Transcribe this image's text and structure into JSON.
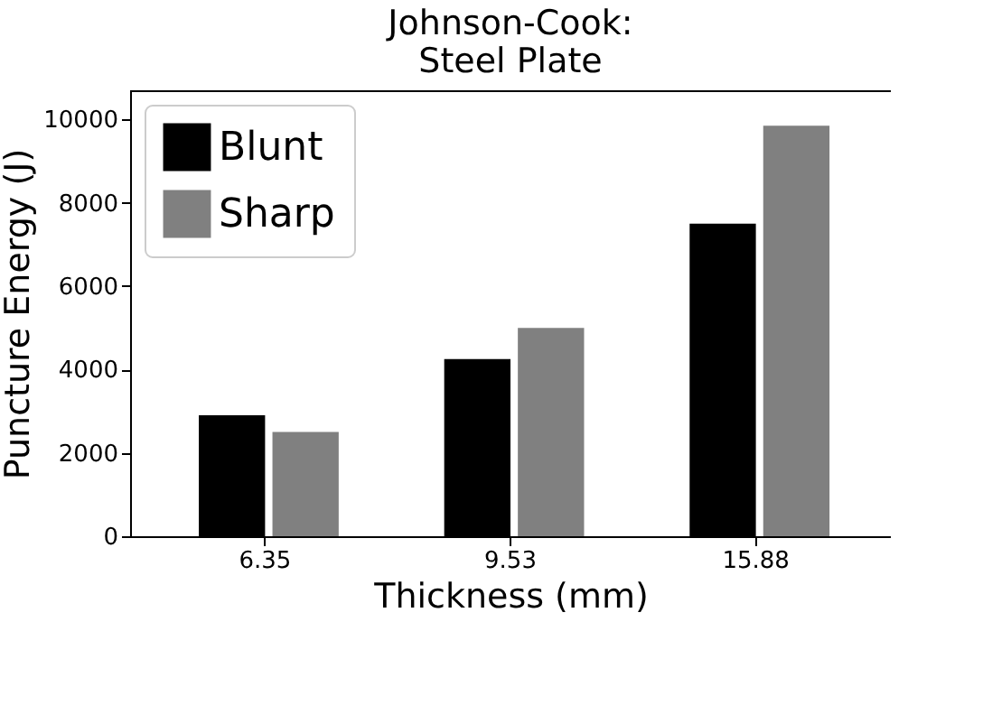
{
  "chart_data": {
    "type": "bar",
    "title": "Johnson-Cook:\nSteel Plate",
    "xlabel": "Thickness (mm)",
    "ylabel": "Puncture Energy (J)",
    "categories": [
      "6.35",
      "9.53",
      "15.88"
    ],
    "series": [
      {
        "name": "Blunt",
        "color": "#000000",
        "values": [
          2900,
          4250,
          7500
        ]
      },
      {
        "name": "Sharp",
        "color": "#808080",
        "values": [
          2500,
          5000,
          9850
        ]
      }
    ],
    "ylim": [
      0,
      10700
    ],
    "yticks": [
      0,
      2000,
      4000,
      6000,
      8000,
      10000
    ],
    "legend": "top left",
    "grid": false
  }
}
